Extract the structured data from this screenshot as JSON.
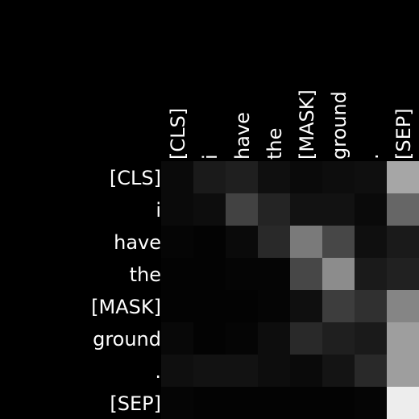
{
  "chart_data": {
    "type": "heatmap",
    "title": "",
    "xlabel": "",
    "ylabel": "",
    "x_labels": [
      "[CLS]",
      "i",
      "have",
      "the",
      "[MASK]",
      "ground",
      ".",
      "[SEP]"
    ],
    "y_labels": [
      "[CLS]",
      "i",
      "have",
      "the",
      "[MASK]",
      "ground",
      ".",
      "[SEP]"
    ],
    "value_range": [
      0,
      1
    ],
    "colormap": "gray",
    "grid": false,
    "values": [
      [
        0.04,
        0.1,
        0.12,
        0.06,
        0.04,
        0.05,
        0.06,
        0.65
      ],
      [
        0.04,
        0.05,
        0.26,
        0.14,
        0.07,
        0.07,
        0.04,
        0.4
      ],
      [
        0.02,
        0.01,
        0.04,
        0.16,
        0.48,
        0.28,
        0.06,
        0.1
      ],
      [
        0.01,
        0.01,
        0.02,
        0.02,
        0.28,
        0.55,
        0.1,
        0.13
      ],
      [
        0.01,
        0.01,
        0.01,
        0.02,
        0.06,
        0.24,
        0.19,
        0.52
      ],
      [
        0.03,
        0.01,
        0.02,
        0.05,
        0.16,
        0.12,
        0.1,
        0.62
      ],
      [
        0.06,
        0.07,
        0.07,
        0.05,
        0.04,
        0.08,
        0.16,
        0.62
      ],
      [
        0.02,
        0.01,
        0.01,
        0.01,
        0.01,
        0.01,
        0.02,
        0.93
      ]
    ]
  }
}
